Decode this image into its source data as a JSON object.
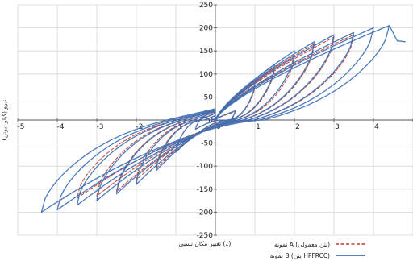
{
  "chart_data": {
    "type": "line",
    "xlabel": "تغییر مکان نسبی (٪)",
    "ylabel": "نیرو (کیلو نیوتن)",
    "xlim": [
      -5,
      5
    ],
    "ylim": [
      -250,
      250
    ],
    "x_ticks": [
      -5,
      -4,
      -3,
      -2,
      -1,
      0,
      1,
      2,
      3,
      4,
      5
    ],
    "y_ticks": [
      -250,
      -200,
      -150,
      -100,
      -50,
      0,
      50,
      100,
      150,
      200,
      250
    ],
    "grid": true,
    "legend_position": "bottom-right",
    "series": [
      {
        "name": "نمونه A (بتن معمولی)",
        "color": "#c0392b",
        "style": "dashed",
        "loops": [
          {
            "amp": 0.5,
            "peak_pos": 18,
            "peak_neg": -20
          },
          {
            "amp": 1.0,
            "peak_pos": 75,
            "peak_neg": -70
          },
          {
            "amp": 1.5,
            "peak_pos": 115,
            "peak_neg": -105
          },
          {
            "amp": 2.0,
            "peak_pos": 140,
            "peak_neg": -130
          },
          {
            "amp": 2.5,
            "peak_pos": 165,
            "peak_neg": -155
          },
          {
            "amp": 3.0,
            "peak_pos": 180,
            "peak_neg": -165
          },
          {
            "amp": 3.5,
            "peak_pos": 185,
            "peak_neg": -170
          }
        ]
      },
      {
        "name": "نمونه B (بتن HPFRCC)",
        "color": "#3d6fb5",
        "style": "solid",
        "loops": [
          {
            "amp": 0.5,
            "peak_pos": 20,
            "peak_neg": -20
          },
          {
            "amp": 1.0,
            "peak_pos": 80,
            "peak_neg": -70
          },
          {
            "amp": 1.5,
            "peak_pos": 120,
            "peak_neg": -110
          },
          {
            "amp": 2.0,
            "peak_pos": 150,
            "peak_neg": -140
          },
          {
            "amp": 2.5,
            "peak_pos": 170,
            "peak_neg": -160
          },
          {
            "amp": 3.0,
            "peak_pos": 185,
            "peak_neg": -175
          },
          {
            "amp": 3.5,
            "peak_pos": 190,
            "peak_neg": -185
          },
          {
            "amp": 4.0,
            "peak_pos": 200,
            "peak_neg": -195
          },
          {
            "amp": 4.4,
            "peak_pos": 205,
            "peak_neg": -200
          }
        ],
        "tail": [
          [
            4.4,
            205
          ],
          [
            4.6,
            172
          ],
          [
            4.8,
            170
          ]
        ]
      }
    ]
  }
}
